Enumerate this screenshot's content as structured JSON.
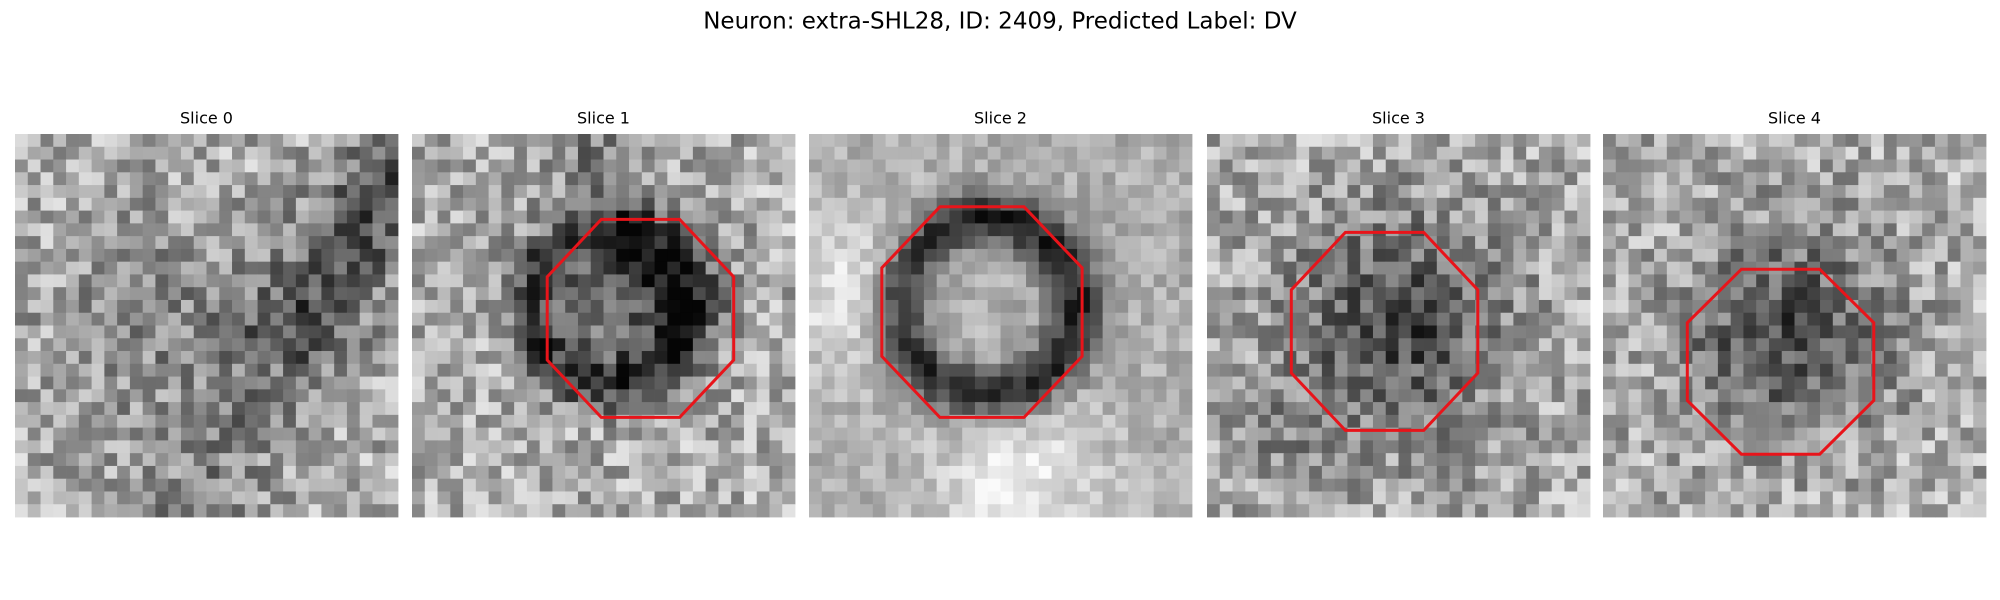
{
  "title": "Neuron: extra-SHL28, ID: 2409, Predicted Label: DV",
  "panels": [
    {
      "title": "Slice 0"
    },
    {
      "title": "Slice 1"
    },
    {
      "title": "Slice 2"
    },
    {
      "title": "Slice 3"
    },
    {
      "title": "Slice 4"
    }
  ]
}
